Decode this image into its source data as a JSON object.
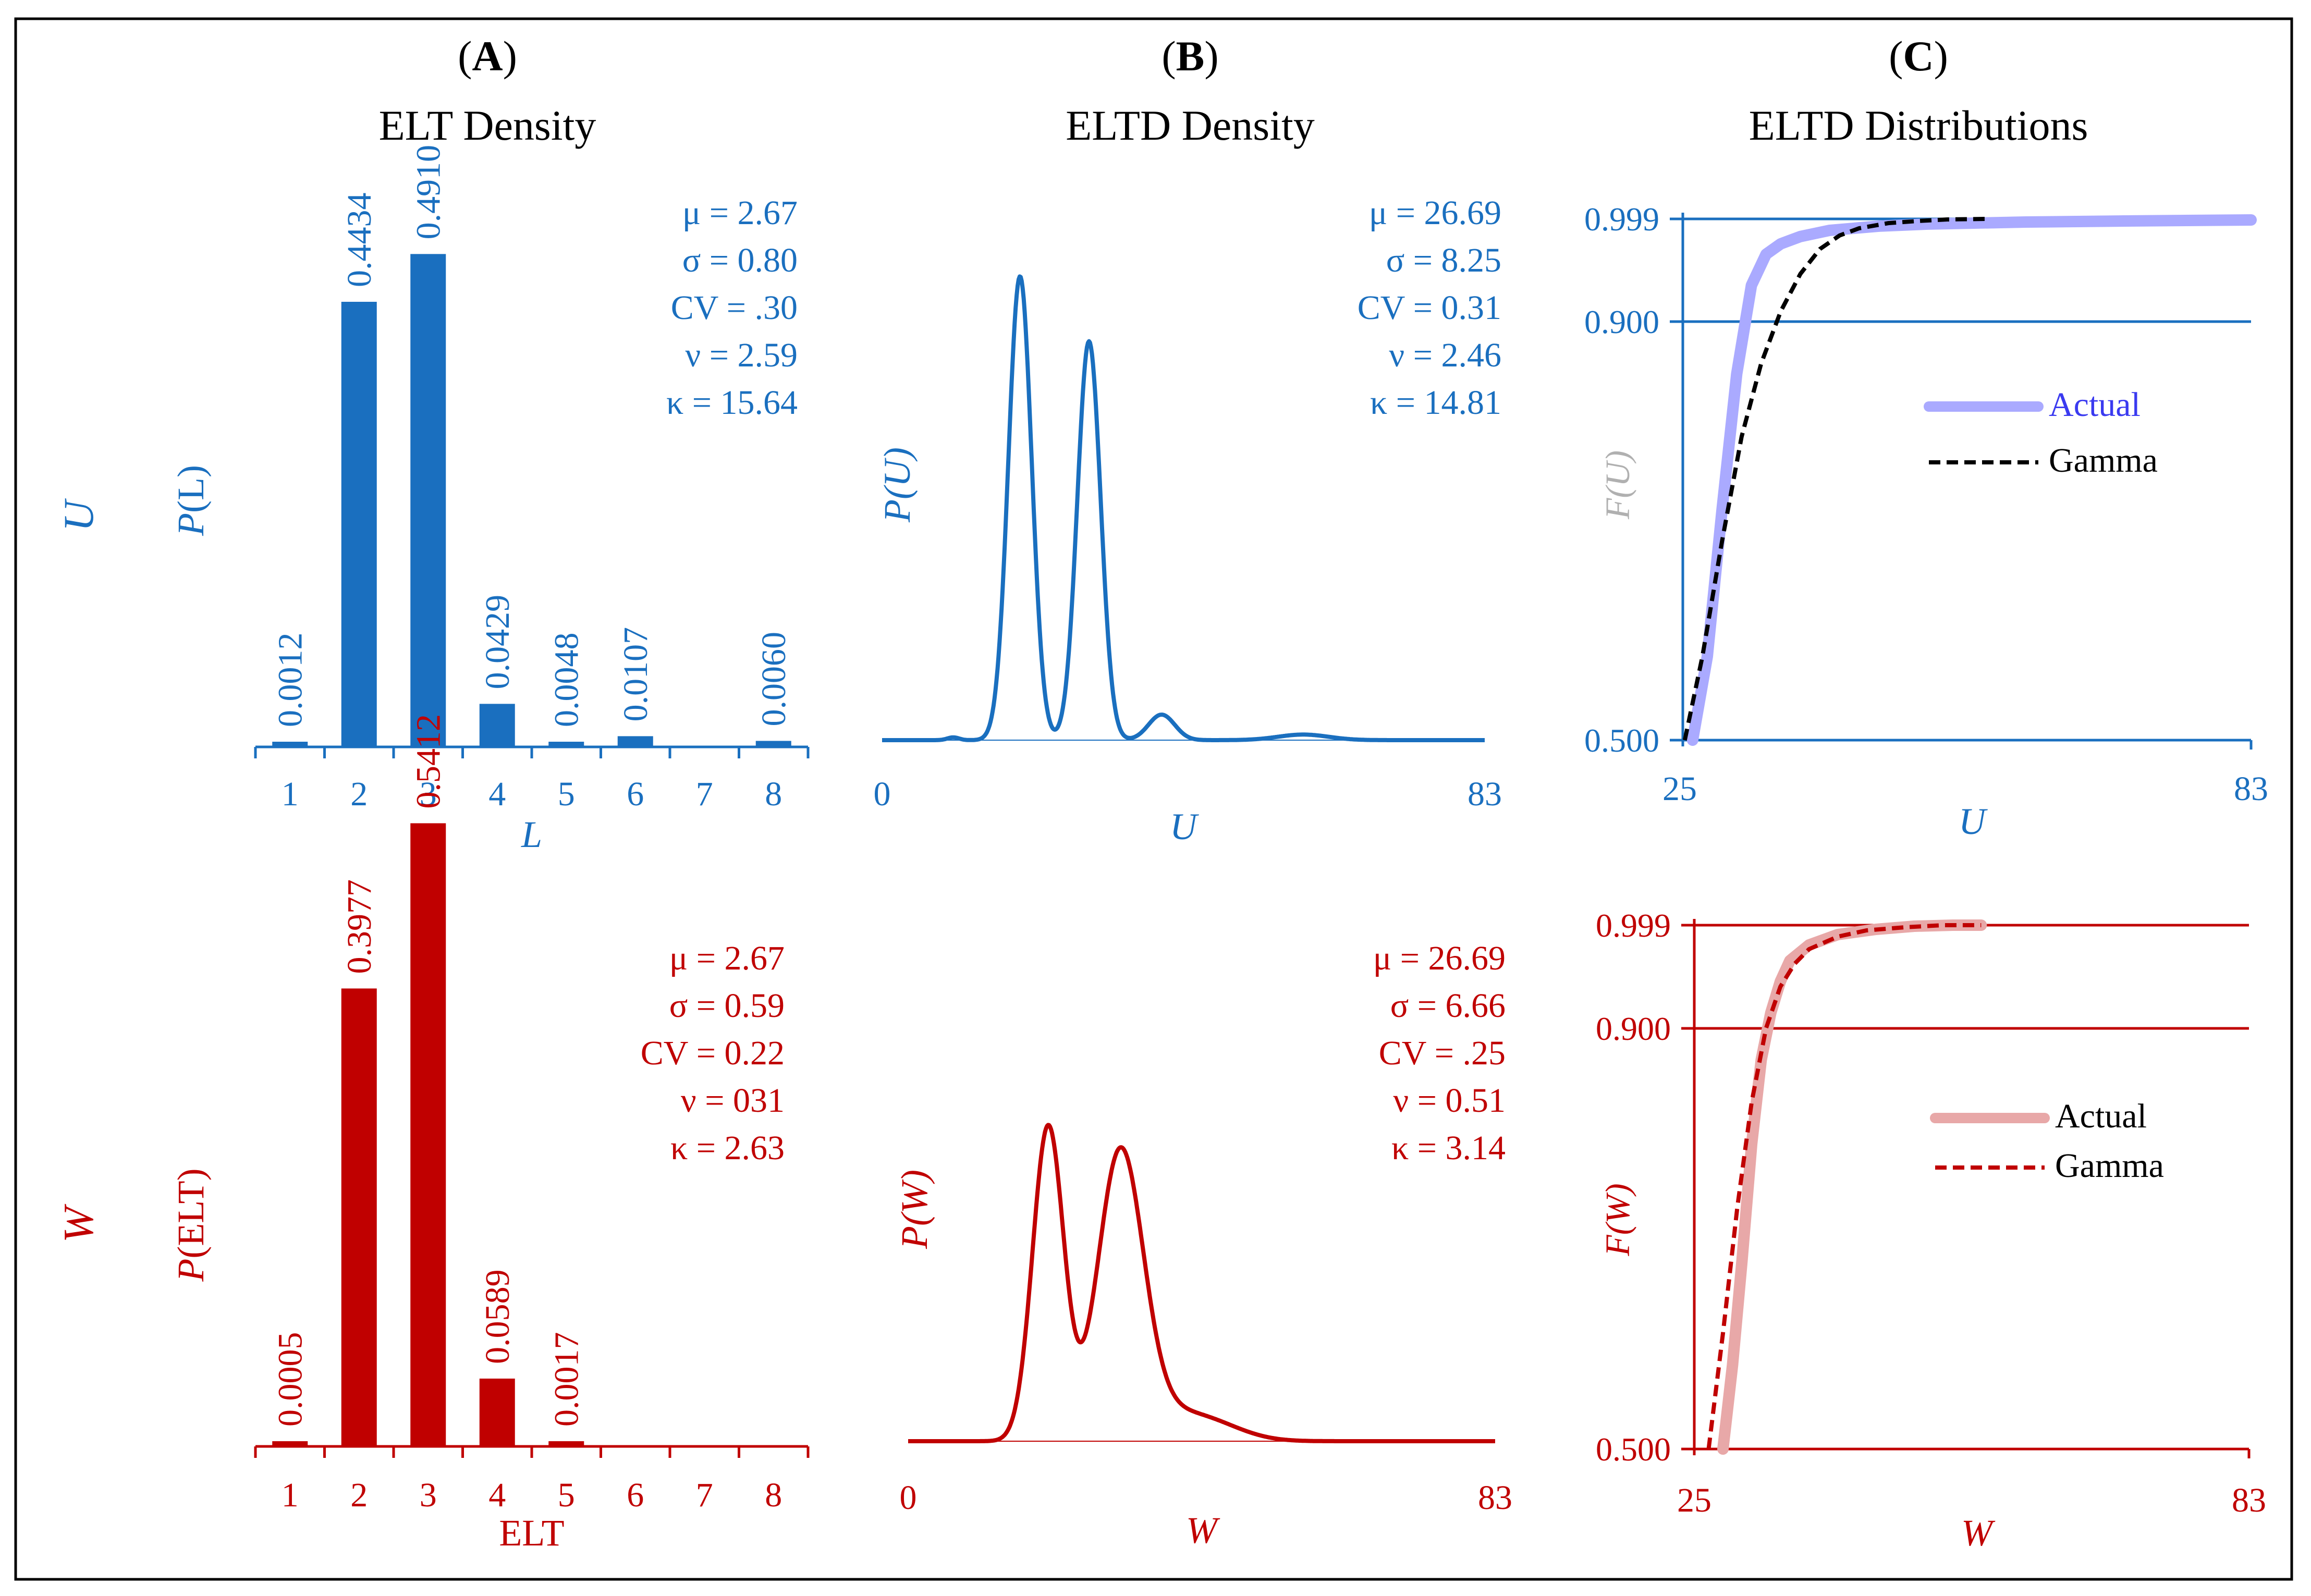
{
  "colors": {
    "blue": "#1a6fbf",
    "red": "#c00000",
    "actual_blue": "#aaaaff",
    "actual_red": "#e8a8a8",
    "label_gray": "#b0b0b0",
    "black": "#000000"
  },
  "panel_titles": [
    {
      "letter": "A",
      "paren_open": "(",
      "paren_close": ")",
      "title": "ELT Density"
    },
    {
      "letter": "B",
      "paren_open": "(",
      "paren_close": ")",
      "title": "ELTD Density"
    },
    {
      "letter": "C",
      "paren_open": "(",
      "paren_close": ")",
      "title": "ELTD Distributions"
    }
  ],
  "row_labels": {
    "top": "U",
    "bottom": "W"
  },
  "chart_data": [
    {
      "id": "bar-U",
      "type": "bar",
      "color": "blue",
      "categories": [
        "1",
        "2",
        "3",
        "4",
        "5",
        "6",
        "7",
        "8"
      ],
      "values": [
        0.0012,
        0.4434,
        0.491,
        0.0429,
        0.0048,
        0.0107,
        0,
        0.006
      ],
      "value_labels": [
        "0.0012",
        "0.4434",
        "0.4910",
        "0.0429",
        "0.0048",
        "0.0107",
        "",
        "0.0060"
      ],
      "ylabel_italic": "P",
      "ylabel_rest": "(L)",
      "xlabel": "L",
      "xlabel_italic": true,
      "ylim": [
        0,
        0.5
      ],
      "stats": [
        "μ = 2.67",
        "σ = 0.80",
        "CV = .30",
        "ν = 2.59",
        "κ = 15.64"
      ]
    },
    {
      "id": "bar-W",
      "type": "bar",
      "color": "red",
      "categories": [
        "1",
        "2",
        "3",
        "4",
        "5",
        "6",
        "7",
        "8"
      ],
      "values": [
        0.0005,
        0.3977,
        0.5412,
        0.0589,
        0.0017,
        0,
        0,
        0
      ],
      "value_labels": [
        "0.0005",
        "0.3977",
        "0.5412",
        "0.0589",
        "0.0017",
        "",
        "",
        ""
      ],
      "ylabel_italic": "P",
      "ylabel_rest": "(ELT)",
      "xlabel": "ELT",
      "xlabel_italic": false,
      "ylim": [
        0,
        0.55
      ],
      "stats": [
        "μ = 2.67",
        "σ = 0.59",
        "CV = 0.22",
        "ν = 031",
        "κ = 2.63"
      ]
    },
    {
      "id": "density-U",
      "type": "line",
      "color": "blue",
      "x_ticks": [
        "0",
        "83"
      ],
      "xlim": [
        0,
        83
      ],
      "ylabel_italic": "P",
      "ylabel_rest": "(U)",
      "ylabel_rest_italic": true,
      "xlabel": "U",
      "peaks": [
        {
          "center": 19.0,
          "width": 1.6,
          "height": 1.0
        },
        {
          "center": 28.5,
          "width": 1.6,
          "height": 0.86
        },
        {
          "center": 38.5,
          "width": 1.8,
          "height": 0.055
        },
        {
          "center": 58.0,
          "width": 3.5,
          "height": 0.012
        },
        {
          "center": 9.8,
          "width": 0.8,
          "height": 0.006
        }
      ],
      "ymax": 1.0,
      "stats": [
        "μ = 26.69",
        "σ = 8.25",
        "CV = 0.31",
        "ν = 2.46",
        "κ = 14.81"
      ]
    },
    {
      "id": "density-W",
      "type": "line",
      "color": "red",
      "x_ticks": [
        "0",
        "83"
      ],
      "xlim": [
        0,
        83
      ],
      "ylabel_italic": "P",
      "ylabel_rest": "(W)",
      "ylabel_rest_italic": true,
      "xlabel": "W",
      "peaks": [
        {
          "center": 19.8,
          "width": 2.2,
          "height": 0.92
        },
        {
          "center": 30.0,
          "width": 3.2,
          "height": 0.82
        },
        {
          "center": 37.0,
          "width": 6.0,
          "height": 0.08
        },
        {
          "center": 44.0,
          "width": 4.5,
          "height": 0.02
        }
      ],
      "ymax": 1.0,
      "stats": [
        "μ = 26.69",
        "σ = 6.66",
        "CV = .25",
        "ν = 0.51",
        "κ = 3.14"
      ]
    },
    {
      "id": "cdf-U",
      "type": "line",
      "color": "blue",
      "x_ticks": [
        "25",
        "83"
      ],
      "xlim": [
        25,
        83
      ],
      "y_ticks": [
        "0.999",
        "0.900",
        "0.500"
      ],
      "ylabel": "F(U)",
      "xlabel": "U",
      "series": [
        {
          "name": "Actual",
          "style": "solid",
          "color_key": "actual_blue",
          "x": [
            26.0,
            27.5,
            29.0,
            30.5,
            32.0,
            33.5,
            35.0,
            37.0,
            40.0,
            45.0,
            50.0,
            60.0,
            70.0,
            83.0
          ],
          "y": [
            0.5,
            0.58,
            0.72,
            0.85,
            0.935,
            0.965,
            0.975,
            0.982,
            0.988,
            0.992,
            0.994,
            0.996,
            0.997,
            0.998
          ]
        },
        {
          "name": "Gamma",
          "style": "dashed",
          "color_key": "black",
          "x": [
            25.2,
            27.0,
            29.0,
            31.0,
            33.0,
            35.0,
            37.0,
            39.0,
            41.0,
            43.0,
            46.0,
            49.0,
            52.0,
            56.0
          ],
          "y": [
            0.5,
            0.58,
            0.69,
            0.79,
            0.86,
            0.91,
            0.946,
            0.97,
            0.983,
            0.99,
            0.995,
            0.997,
            0.9985,
            0.999
          ]
        }
      ],
      "legend": [
        "Actual",
        "Gamma"
      ],
      "legend_actual_text_color": "#3a3af0"
    },
    {
      "id": "cdf-W",
      "type": "line",
      "color": "red",
      "x_ticks": [
        "25",
        "83"
      ],
      "xlim": [
        25,
        83
      ],
      "y_ticks": [
        "0.999",
        "0.900",
        "0.500"
      ],
      "ylabel": "F(W)",
      "xlabel": "W",
      "series": [
        {
          "name": "Actual",
          "style": "solid",
          "color_key": "actual_red",
          "x": [
            28.0,
            29.0,
            30.0,
            31.0,
            32.0,
            33.0,
            34.0,
            35.0,
            37.0,
            40.0,
            44.0,
            48.0,
            52.0,
            55.0
          ],
          "y": [
            0.5,
            0.58,
            0.68,
            0.79,
            0.87,
            0.915,
            0.945,
            0.965,
            0.98,
            0.99,
            0.995,
            0.998,
            0.999,
            0.999
          ]
        },
        {
          "name": "Gamma",
          "style": "dashed",
          "color_key": "red",
          "x": [
            26.5,
            28.0,
            29.5,
            31.0,
            32.5,
            34.0,
            35.5,
            37.0,
            40.0,
            43.0,
            47.0,
            51.0,
            55.0
          ],
          "y": [
            0.5,
            0.61,
            0.73,
            0.83,
            0.9,
            0.94,
            0.962,
            0.976,
            0.988,
            0.994,
            0.997,
            0.999,
            0.999
          ]
        }
      ],
      "legend": [
        "Actual",
        "Gamma"
      ],
      "legend_actual_text_color": "#000000"
    }
  ]
}
